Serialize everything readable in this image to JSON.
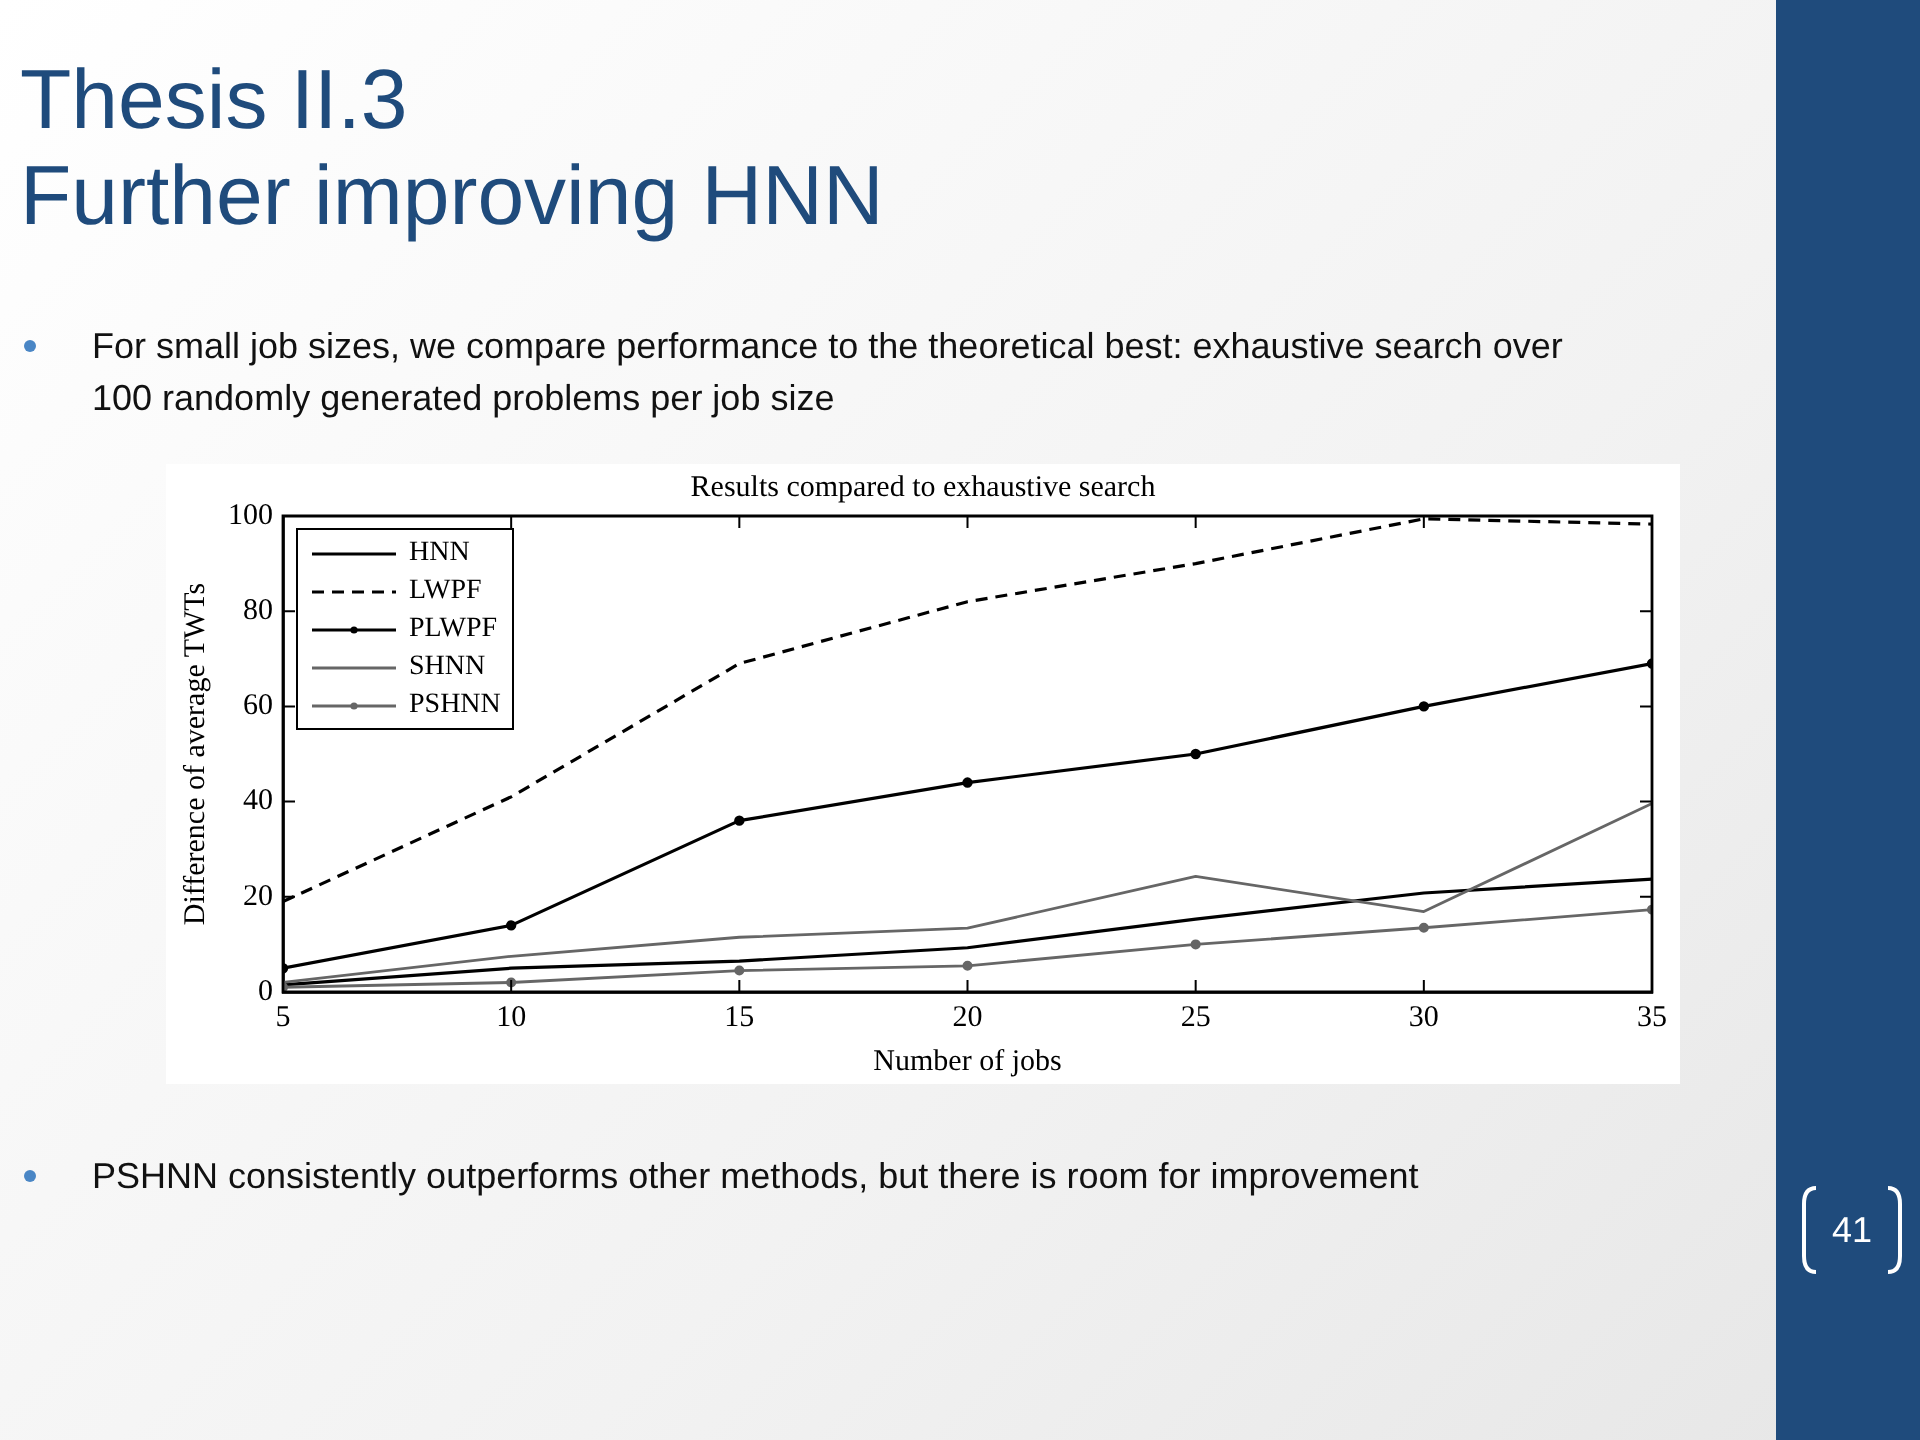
{
  "chart_data": {
    "type": "line",
    "title": "Thesis II.3\nFurther improving HNN",
    "subtitle": "Results compared to exhaustive search",
    "xlabel": "Number of jobs",
    "ylabel": "Difference of average TWTs",
    "annotations": [
      "For small job sizes, we compare performance to the theoretical best: exhaustive search over 100 randomly generated problems per job size",
      "PSHNN consistently outperforms other methods, but there is room for improvement",
      "41"
    ],
    "x": [
      5,
      10,
      15,
      20,
      25,
      30,
      35
    ],
    "xlim": [
      5,
      35
    ],
    "xticks": [
      5,
      10,
      15,
      20,
      25,
      30,
      35
    ],
    "ylim": [
      0,
      100
    ],
    "yticks": [
      0,
      20,
      40,
      60,
      80,
      100
    ],
    "grid": false,
    "legend": "top left",
    "series": [
      {
        "name": "HNN",
        "color": "#000000",
        "marker": "none",
        "line_style": "solid",
        "values": [
          1.5,
          5,
          6.5,
          9.3,
          15.3,
          20.8,
          23.7
        ]
      },
      {
        "name": "LWPF",
        "color": "#000000",
        "marker": "none",
        "line_style": "dashed",
        "values": [
          19,
          41,
          69,
          82,
          90,
          99.4,
          98.3
        ]
      },
      {
        "name": "PLWPF",
        "color": "#000000",
        "marker": "circle",
        "line_style": "solid",
        "values": [
          5,
          14,
          36,
          44,
          50,
          60,
          69
        ]
      },
      {
        "name": "SHNN",
        "color": "#666666",
        "marker": "none",
        "line_style": "solid",
        "values": [
          2,
          7.5,
          11.5,
          13.4,
          24.3,
          16.9,
          39.6
        ]
      },
      {
        "name": "PSHNN",
        "color": "#666666",
        "marker": "circle",
        "line_style": "solid",
        "values": [
          1,
          2,
          4.5,
          5.5,
          10,
          13.5,
          17.3
        ]
      }
    ]
  }
}
